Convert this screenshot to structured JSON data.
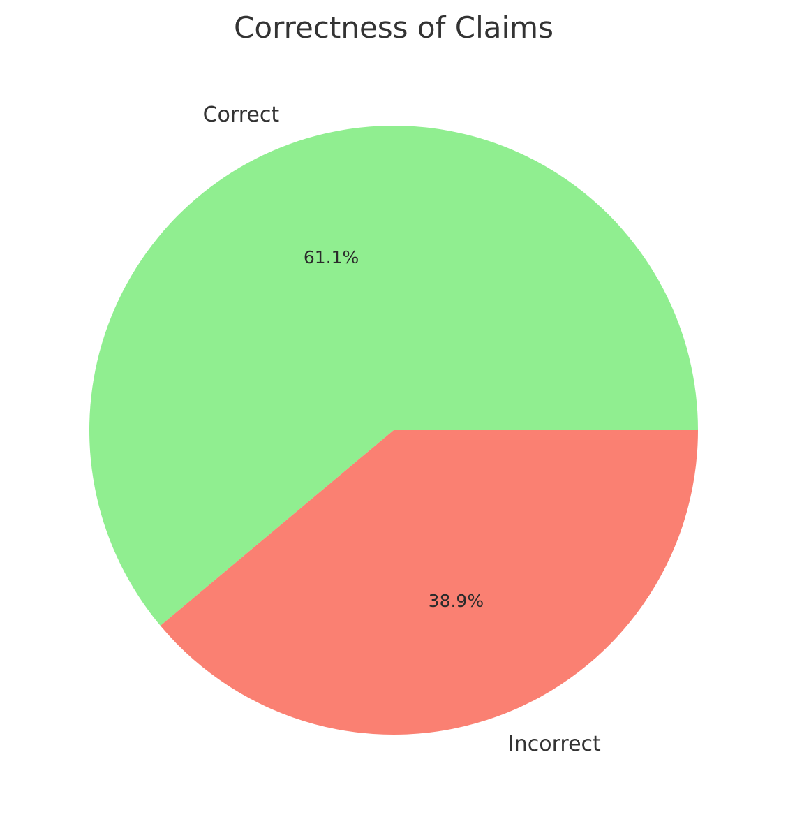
{
  "chart_data": {
    "type": "pie",
    "title": "Correctness of Claims",
    "slices": [
      {
        "label": "Correct",
        "value": 61.1,
        "pct_label": "61.1%",
        "color": "#90EE90"
      },
      {
        "label": "Incorrect",
        "value": 38.9,
        "pct_label": "38.9%",
        "color": "#FA8072"
      }
    ],
    "start_angle_deg": 0,
    "direction": "counterclockwise",
    "legend": "none"
  }
}
